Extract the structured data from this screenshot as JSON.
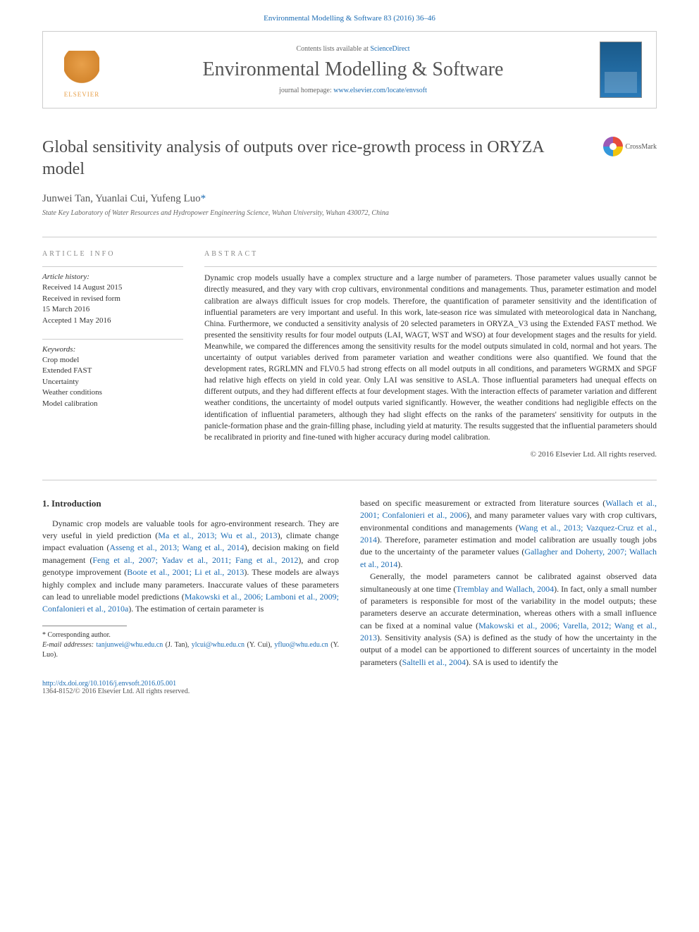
{
  "header": {
    "citation": "Environmental Modelling & Software 83 (2016) 36–46",
    "contents_prefix": "Contents lists available at ",
    "contents_link": "ScienceDirect",
    "journal_name": "Environmental Modelling & Software",
    "homepage_prefix": "journal homepage: ",
    "homepage_link": "www.elsevier.com/locate/envsoft",
    "publisher_name": "ELSEVIER"
  },
  "article": {
    "title": "Global sensitivity analysis of outputs over rice-growth process in ORYZA model",
    "crossmark_label": "CrossMark",
    "authors": "Junwei Tan, Yuanlai Cui, Yufeng Luo",
    "corresponding_marker": "*",
    "affiliation": "State Key Laboratory of Water Resources and Hydropower Engineering Science, Wuhan University, Wuhan 430072, China"
  },
  "info": {
    "section_label": "ARTICLE INFO",
    "history_label": "Article history:",
    "history": [
      "Received 14 August 2015",
      "Received in revised form",
      "15 March 2016",
      "Accepted 1 May 2016"
    ],
    "keywords_label": "Keywords:",
    "keywords": [
      "Crop model",
      "Extended FAST",
      "Uncertainty",
      "Weather conditions",
      "Model calibration"
    ]
  },
  "abstract": {
    "section_label": "ABSTRACT",
    "text": "Dynamic crop models usually have a complex structure and a large number of parameters. Those parameter values usually cannot be directly measured, and they vary with crop cultivars, environmental conditions and managements. Thus, parameter estimation and model calibration are always difficult issues for crop models. Therefore, the quantification of parameter sensitivity and the identification of influential parameters are very important and useful. In this work, late-season rice was simulated with meteorological data in Nanchang, China. Furthermore, we conducted a sensitivity analysis of 20 selected parameters in ORYZA_V3 using the Extended FAST method. We presented the sensitivity results for four model outputs (LAI, WAGT, WST and WSO) at four development stages and the results for yield. Meanwhile, we compared the differences among the sensitivity results for the model outputs simulated in cold, normal and hot years. The uncertainty of output variables derived from parameter variation and weather conditions were also quantified. We found that the development rates, RGRLMN and FLV0.5 had strong effects on all model outputs in all conditions, and parameters WGRMX and SPGF had relative high effects on yield in cold year. Only LAI was sensitive to ASLA. Those influential parameters had unequal effects on different outputs, and they had different effects at four development stages. With the interaction effects of parameter variation and different weather conditions, the uncertainty of model outputs varied significantly. However, the weather conditions had negligible effects on the identification of influential parameters, although they had slight effects on the ranks of the parameters' sensitivity for outputs in the panicle-formation phase and the grain-filling phase, including yield at maturity. The results suggested that the influential parameters should be recalibrated in priority and fine-tuned with higher accuracy during model calibration.",
    "copyright": "© 2016 Elsevier Ltd. All rights reserved."
  },
  "body": {
    "section_heading": "1. Introduction",
    "col1_p1_a": "Dynamic crop models are valuable tools for agro-environment research. They are very useful in yield prediction (",
    "col1_c1": "Ma et al., 2013; Wu et al., 2013",
    "col1_p1_b": "), climate change impact evaluation (",
    "col1_c2": "Asseng et al., 2013; Wang et al., 2014",
    "col1_p1_c": "), decision making on field management (",
    "col1_c3": "Feng et al., 2007; Yadav et al., 2011; Fang et al., 2012",
    "col1_p1_d": "), and crop genotype improvement (",
    "col1_c4": "Boote et al., 2001; Li et al., 2013",
    "col1_p1_e": "). These models are always highly complex and include many parameters. Inaccurate values of these parameters can lead to unreliable model predictions (",
    "col1_c5": "Makowski et al., 2006; Lamboni et al., 2009; Confalonieri et al., 2010a",
    "col1_p1_f": "). The estimation of certain parameter is",
    "col2_p1_a": "based on specific measurement or extracted from literature sources (",
    "col2_c1": "Wallach et al., 2001; Confalonieri et al., 2006",
    "col2_p1_b": "), and many parameter values vary with crop cultivars, environmental conditions and managements (",
    "col2_c2": "Wang et al., 2013; Vazquez-Cruz et al., 2014",
    "col2_p1_c": "). Therefore, parameter estimation and model calibration are usually tough jobs due to the uncertainty of the parameter values (",
    "col2_c3": "Gallagher and Doherty, 2007; Wallach et al., 2014",
    "col2_p1_d": ").",
    "col2_p2_a": "Generally, the model parameters cannot be calibrated against observed data simultaneously at one time (",
    "col2_c4": "Tremblay and Wallach, 2004",
    "col2_p2_b": "). In fact, only a small number of parameters is responsible for most of the variability in the model outputs; these parameters deserve an accurate determination, whereas others with a small influence can be fixed at a nominal value (",
    "col2_c5": "Makowski et al., 2006; Varella, 2012; Wang et al., 2013",
    "col2_p2_c": "). Sensitivity analysis (SA) is defined as the study of how the uncertainty in the output of a model can be apportioned to different sources of uncertainty in the model parameters (",
    "col2_c6": "Saltelli et al., 2004",
    "col2_p2_d": "). SA is used to identify the"
  },
  "footnote": {
    "corresponding": "* Corresponding author.",
    "email_label": "E-mail addresses: ",
    "email1": "tanjunwei@whu.edu.cn",
    "name1": " (J. Tan), ",
    "email2": "ylcui@whu.edu.cn",
    "name2": " (Y. Cui), ",
    "email3": "yfluo@whu.edu.cn",
    "name3": " (Y. Luo)."
  },
  "footer": {
    "doi": "http://dx.doi.org/10.1016/j.envsoft.2016.05.001",
    "issn_copyright": "1364-8152/© 2016 Elsevier Ltd. All rights reserved."
  },
  "colors": {
    "link": "#1a6bb3",
    "text": "#333333",
    "muted": "#666666",
    "rule": "#cccccc"
  }
}
